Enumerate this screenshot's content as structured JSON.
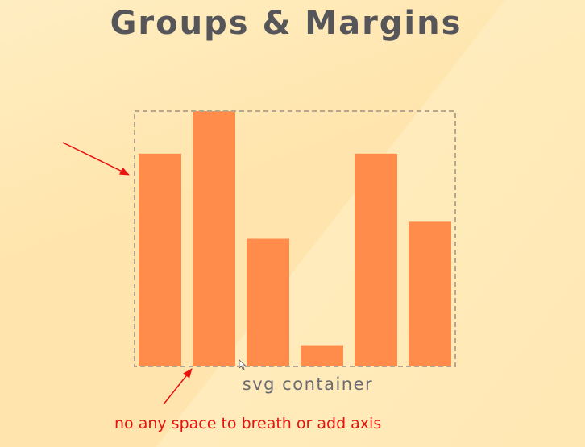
{
  "title": "Groups & Margins",
  "container_label": "svg container",
  "annotation": "no any space to breath or add axis",
  "colors": {
    "background": "#ffe5ad",
    "bar": "#ff8c4a",
    "container_border": "#b5a78e",
    "title": "#56555a",
    "annotation": "#e8120f"
  },
  "chart_data": {
    "type": "bar",
    "values": [
      5,
      6,
      3,
      0.5,
      5,
      3.4
    ],
    "ylim": [
      0,
      6
    ]
  }
}
